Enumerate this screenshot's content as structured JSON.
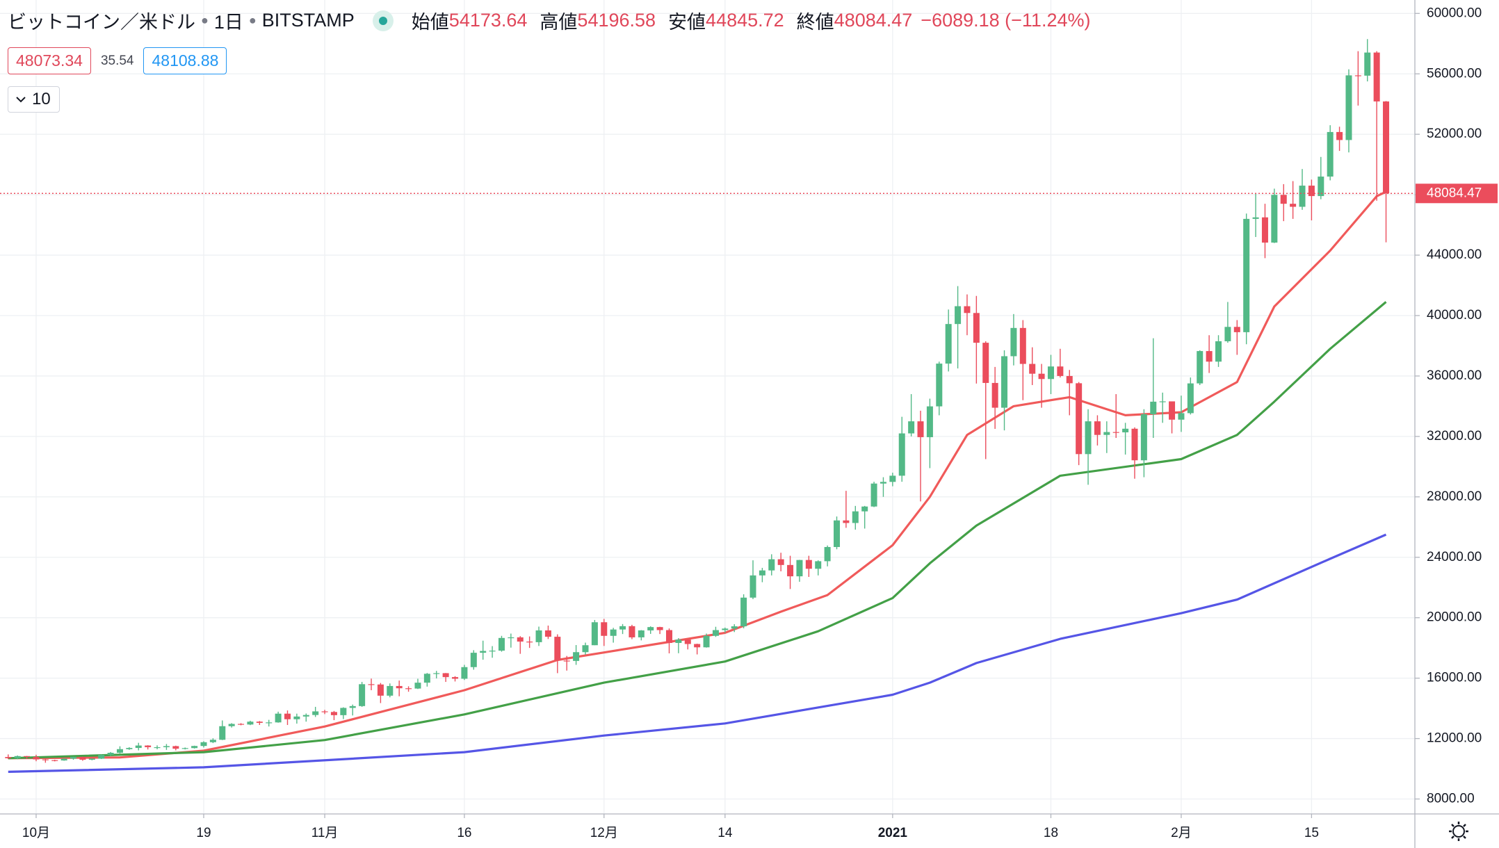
{
  "header": {
    "symbol": "ビットコイン／米ドル",
    "interval": "1日",
    "exchange": "BITSTAMP",
    "ohlc_labels": [
      "始値",
      "高値",
      "安値",
      "終値"
    ],
    "change": "−6089.18 (−11.24%)",
    "legend_values": [
      48073.34,
      35.54,
      48108.88
    ],
    "period": 10
  },
  "chart_data": {
    "type": "candlestick",
    "categories": [
      "2020-09-28",
      "2020-09-29",
      "2020-09-30",
      "2020-10-01",
      "2020-10-02",
      "2020-10-03",
      "2020-10-04",
      "2020-10-05",
      "2020-10-06",
      "2020-10-07",
      "2020-10-08",
      "2020-10-09",
      "2020-10-10",
      "2020-10-11",
      "2020-10-12",
      "2020-10-13",
      "2020-10-14",
      "2020-10-15",
      "2020-10-16",
      "2020-10-17",
      "2020-10-18",
      "2020-10-19",
      "2020-10-20",
      "2020-10-21",
      "2020-10-22",
      "2020-10-23",
      "2020-10-24",
      "2020-10-25",
      "2020-10-26",
      "2020-10-27",
      "2020-10-28",
      "2020-10-29",
      "2020-10-30",
      "2020-10-31",
      "2020-11-01",
      "2020-11-02",
      "2020-11-03",
      "2020-11-04",
      "2020-11-05",
      "2020-11-06",
      "2020-11-07",
      "2020-11-08",
      "2020-11-09",
      "2020-11-10",
      "2020-11-11",
      "2020-11-12",
      "2020-11-13",
      "2020-11-14",
      "2020-11-15",
      "2020-11-16",
      "2020-11-17",
      "2020-11-18",
      "2020-11-19",
      "2020-11-20",
      "2020-11-21",
      "2020-11-22",
      "2020-11-23",
      "2020-11-24",
      "2020-11-25",
      "2020-11-26",
      "2020-11-27",
      "2020-11-28",
      "2020-11-29",
      "2020-11-30",
      "2020-12-01",
      "2020-12-02",
      "2020-12-03",
      "2020-12-04",
      "2020-12-05",
      "2020-12-06",
      "2020-12-07",
      "2020-12-08",
      "2020-12-09",
      "2020-12-10",
      "2020-12-11",
      "2020-12-12",
      "2020-12-13",
      "2020-12-14",
      "2020-12-15",
      "2020-12-16",
      "2020-12-17",
      "2020-12-18",
      "2020-12-19",
      "2020-12-20",
      "2020-12-21",
      "2020-12-22",
      "2020-12-23",
      "2020-12-24",
      "2020-12-25",
      "2020-12-26",
      "2020-12-27",
      "2020-12-28",
      "2020-12-29",
      "2020-12-30",
      "2020-12-31",
      "2021-01-01",
      "2021-01-02",
      "2021-01-03",
      "2021-01-04",
      "2021-01-05",
      "2021-01-06",
      "2021-01-07",
      "2021-01-08",
      "2021-01-09",
      "2021-01-10",
      "2021-01-11",
      "2021-01-12",
      "2021-01-13",
      "2021-01-14",
      "2021-01-15",
      "2021-01-16",
      "2021-01-17",
      "2021-01-18",
      "2021-01-19",
      "2021-01-20",
      "2021-01-21",
      "2021-01-22",
      "2021-01-23",
      "2021-01-24",
      "2021-01-25",
      "2021-01-26",
      "2021-01-27",
      "2021-01-28",
      "2021-01-29",
      "2021-01-30",
      "2021-01-31",
      "2021-02-01",
      "2021-02-02",
      "2021-02-03",
      "2021-02-04",
      "2021-02-05",
      "2021-02-06",
      "2021-02-07",
      "2021-02-08",
      "2021-02-09",
      "2021-02-10",
      "2021-02-11",
      "2021-02-12",
      "2021-02-13",
      "2021-02-14",
      "2021-02-15",
      "2021-02-16",
      "2021-02-17",
      "2021-02-18",
      "2021-02-19",
      "2021-02-20",
      "2021-02-21",
      "2021-02-22",
      "2021-02-23"
    ],
    "open": [
      10780,
      10700,
      10840,
      10780,
      10620,
      10570,
      10550,
      10670,
      10790,
      10600,
      10670,
      10920,
      11060,
      11300,
      11380,
      11540,
      11430,
      11430,
      11500,
      11330,
      11370,
      11510,
      11760,
      11920,
      12820,
      12970,
      12930,
      13120,
      13040,
      13070,
      13650,
      13280,
      13460,
      13560,
      13800,
      13760,
      13550,
      14030,
      14150,
      15600,
      15580,
      14840,
      15480,
      15330,
      15310,
      15700,
      16290,
      16330,
      16070,
      15960,
      16730,
      17680,
      17800,
      17820,
      18660,
      18700,
      18420,
      18380,
      19160,
      18740,
      17160,
      17140,
      17720,
      18180,
      19700,
      18800,
      19220,
      19440,
      18700,
      19160,
      19380,
      19180,
      18330,
      18550,
      18260,
      18040,
      18800,
      19180,
      19280,
      19430,
      21330,
      22800,
      23130,
      23870,
      23490,
      22740,
      23820,
      23240,
      23740,
      24680,
      26440,
      26270,
      27040,
      27360,
      28880,
      28990,
      29400,
      32200,
      33000,
      31950,
      33990,
      36820,
      39440,
      40620,
      40170,
      38200,
      35540,
      33900,
      37310,
      39180,
      36800,
      36150,
      35800,
      36630,
      36000,
      35520,
      30830,
      33000,
      32100,
      32290,
      32270,
      32510,
      30420,
      33470,
      34300,
      34320,
      33110,
      33540,
      35510,
      37650,
      36950,
      38300,
      39250,
      38900,
      46400,
      46500,
      44830,
      47990,
      47400,
      47200,
      48600,
      47910,
      49200,
      52150,
      51620,
      55900,
      55880,
      57410,
      54173.64
    ],
    "high": [
      10950,
      10880,
      10850,
      10930,
      10660,
      10600,
      10690,
      10800,
      10800,
      10690,
      10950,
      11110,
      11490,
      11430,
      11720,
      11560,
      11550,
      11640,
      11530,
      11410,
      11530,
      11820,
      12020,
      13200,
      13020,
      13020,
      13180,
      13160,
      13240,
      13780,
      13860,
      13650,
      13660,
      14100,
      13900,
      13830,
      14070,
      14250,
      15750,
      15970,
      15680,
      15650,
      15840,
      15460,
      15960,
      16340,
      16480,
      16340,
      16130,
      16880,
      17850,
      18480,
      18120,
      18800,
      18950,
      18780,
      18760,
      19410,
      19480,
      18900,
      17470,
      18190,
      18350,
      19850,
      19920,
      19330,
      19580,
      19530,
      19180,
      19430,
      19400,
      19290,
      18650,
      18570,
      18280,
      18950,
      19400,
      19350,
      19570,
      21550,
      23800,
      23300,
      24200,
      24300,
      24100,
      23830,
      24100,
      23800,
      24780,
      26700,
      28400,
      27400,
      27400,
      29000,
      29300,
      29600,
      33300,
      34800,
      33700,
      34500,
      36950,
      40400,
      41950,
      41400,
      41300,
      38300,
      36600,
      37700,
      40100,
      39700,
      37900,
      36800,
      37400,
      37800,
      36400,
      35600,
      33800,
      33400,
      33000,
      34800,
      32900,
      32600,
      33800,
      38500,
      34900,
      34300,
      34700,
      35900,
      37700,
      38700,
      38700,
      40900,
      39700,
      46750,
      48100,
      47400,
      48400,
      48700,
      48900,
      49700,
      49000,
      50500,
      52600,
      52500,
      56300,
      57500,
      58300,
      57500,
      54196.58
    ],
    "low": [
      10650,
      10630,
      10650,
      10500,
      10400,
      10490,
      10530,
      10600,
      10530,
      10560,
      10650,
      10830,
      11020,
      11250,
      11220,
      11280,
      11290,
      11250,
      11220,
      11280,
      11340,
      11410,
      11700,
      11900,
      12730,
      12880,
      12890,
      12900,
      12800,
      13050,
      12900,
      12990,
      13120,
      13430,
      13620,
      13220,
      13290,
      13530,
      14100,
      15200,
      14350,
      14730,
      14800,
      15100,
      15280,
      15440,
      15980,
      15750,
      15780,
      15880,
      16560,
      17220,
      17350,
      17750,
      18020,
      17610,
      18000,
      18130,
      18590,
      16330,
      16500,
      16880,
      17550,
      18180,
      18130,
      18350,
      18920,
      18580,
      18500,
      18930,
      18920,
      17640,
      17650,
      17900,
      17570,
      18020,
      18730,
      19000,
      19050,
      19300,
      21230,
      22350,
      22800,
      23070,
      21900,
      22380,
      22700,
      22800,
      23400,
      24530,
      25950,
      25830,
      25900,
      27320,
      28000,
      28700,
      29000,
      32000,
      27700,
      29900,
      33400,
      36300,
      36500,
      38700,
      35500,
      30500,
      32500,
      32400,
      36700,
      34400,
      35400,
      33900,
      34800,
      35900,
      33400,
      30100,
      28800,
      31400,
      30900,
      31900,
      30800,
      29200,
      29300,
      31900,
      32900,
      32200,
      32300,
      33450,
      35400,
      36200,
      36600,
      38200,
      37400,
      38100,
      45200,
      43800,
      44800,
      46250,
      46400,
      47000,
      46300,
      47700,
      48950,
      50900,
      50800,
      53900,
      55500,
      47600,
      44845.72
    ],
    "close": [
      10700,
      10840,
      10780,
      10620,
      10570,
      10550,
      10670,
      10790,
      10600,
      10670,
      10920,
      11060,
      11300,
      11380,
      11540,
      11430,
      11430,
      11500,
      11330,
      11370,
      11510,
      11760,
      11920,
      12820,
      12970,
      12930,
      13120,
      13040,
      13070,
      13650,
      13280,
      13460,
      13560,
      13800,
      13760,
      13550,
      14030,
      14150,
      15600,
      15580,
      14840,
      15480,
      15330,
      15310,
      15700,
      16290,
      16330,
      16070,
      15960,
      16730,
      17680,
      17800,
      17820,
      18660,
      18700,
      18420,
      18380,
      19160,
      18740,
      17160,
      17140,
      17720,
      18180,
      19700,
      18800,
      19220,
      19440,
      18700,
      19160,
      19380,
      19180,
      18330,
      18550,
      18260,
      18040,
      18800,
      19180,
      19280,
      19430,
      21330,
      22800,
      23130,
      23870,
      23490,
      22740,
      23820,
      23240,
      23740,
      24680,
      26440,
      26270,
      27040,
      27360,
      28880,
      28990,
      29400,
      32200,
      33000,
      31950,
      33990,
      36820,
      39440,
      40620,
      40170,
      38200,
      35540,
      33900,
      37310,
      39180,
      36800,
      36150,
      35800,
      36630,
      36000,
      35520,
      30830,
      33000,
      32100,
      32290,
      32270,
      32510,
      30420,
      33470,
      34300,
      34320,
      33110,
      33540,
      35510,
      37650,
      36950,
      38300,
      39250,
      38900,
      46400,
      46500,
      44830,
      47990,
      47400,
      47200,
      48600,
      47910,
      49200,
      52150,
      51620,
      55900,
      55880,
      57410,
      54173.64,
      48084.47
    ],
    "up_color": "#53b987",
    "down_color": "#eb4d5c",
    "series": [
      {
        "color": "#f05a5a",
        "x": [
          "2020-09-28",
          "2020-10-10",
          "2020-10-19",
          "2020-11-01",
          "2020-11-16",
          "2020-11-26",
          "2020-12-01",
          "2020-12-08",
          "2020-12-14",
          "2020-12-20",
          "2020-12-25",
          "2021-01-01",
          "2021-01-05",
          "2021-01-09",
          "2021-01-14",
          "2021-01-20",
          "2021-01-26",
          "2021-02-01",
          "2021-02-07",
          "2021-02-11",
          "2021-02-17",
          "2021-02-22",
          "2021-02-23"
        ],
        "values": [
          10700,
          10750,
          11200,
          12800,
          15200,
          17200,
          17700,
          18400,
          19000,
          20400,
          21500,
          24800,
          28000,
          32100,
          34000,
          34600,
          33400,
          33600,
          35600,
          40600,
          44300,
          47900,
          48200
        ]
      },
      {
        "color": "#43a047",
        "x": [
          "2020-09-28",
          "2020-10-19",
          "2020-11-01",
          "2020-11-16",
          "2020-12-01",
          "2020-12-14",
          "2020-12-24",
          "2021-01-01",
          "2021-01-05",
          "2021-01-10",
          "2021-01-19",
          "2021-02-01",
          "2021-02-07",
          "2021-02-11",
          "2021-02-17",
          "2021-02-23"
        ],
        "values": [
          10700,
          11100,
          11900,
          13600,
          15700,
          17100,
          19100,
          21300,
          23600,
          26100,
          29400,
          30500,
          32100,
          34300,
          37800,
          40900
        ]
      },
      {
        "color": "#5555e6",
        "x": [
          "2020-09-28",
          "2020-10-19",
          "2020-11-16",
          "2020-12-01",
          "2020-12-14",
          "2021-01-01",
          "2021-01-05",
          "2021-01-10",
          "2021-01-19",
          "2021-02-01",
          "2021-02-07",
          "2021-02-17",
          "2021-02-23"
        ],
        "values": [
          9800,
          10100,
          11100,
          12200,
          13000,
          14900,
          15700,
          17000,
          18600,
          20300,
          21200,
          23900,
          25500
        ]
      }
    ],
    "ylim": [
      7011,
      60888
    ],
    "yticks": [
      {
        "value": 8000,
        "label": "8000.00"
      },
      {
        "value": 12000,
        "label": "12000.00"
      },
      {
        "value": 16000,
        "label": "16000.00"
      },
      {
        "value": 20000,
        "label": "20000.00"
      },
      {
        "value": 24000,
        "label": "24000.00"
      },
      {
        "value": 28000,
        "label": "28000.00"
      },
      {
        "value": 32000,
        "label": "32000.00"
      },
      {
        "value": 36000,
        "label": "36000.00"
      },
      {
        "value": 40000,
        "label": "40000.00"
      },
      {
        "value": 44000,
        "label": "44000.00"
      },
      {
        "value": 48000,
        "label": "48000.00"
      },
      {
        "value": 52000,
        "label": "52000.00"
      },
      {
        "value": 56000,
        "label": "56000.00"
      },
      {
        "value": 60000,
        "label": "60000.00"
      }
    ],
    "xticks": [
      {
        "value": "2020-10-01",
        "label": "10月"
      },
      {
        "value": "2020-10-19",
        "label": "19"
      },
      {
        "value": "2020-11-01",
        "label": "11月"
      },
      {
        "value": "2020-11-16",
        "label": "16"
      },
      {
        "value": "2020-12-01",
        "label": "12月"
      },
      {
        "value": "2020-12-14",
        "label": "14"
      },
      {
        "value": "2021-01-01",
        "label": "2021"
      },
      {
        "value": "2021-01-18",
        "label": "18"
      },
      {
        "value": "2021-02-01",
        "label": "2月"
      },
      {
        "value": "2021-02-15",
        "label": "15"
      }
    ],
    "grid": true,
    "price_line_color": "#eb4d5c"
  }
}
